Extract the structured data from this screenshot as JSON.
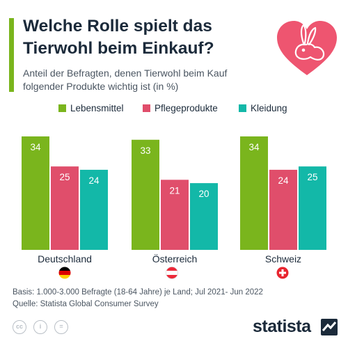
{
  "header": {
    "title": "Welche Rolle spielt das Tierwohl beim Einkauf?",
    "subtitle": "Anteil der Befragten, denen Tierwohl beim Kauf folgender Produkte wichtig ist (in %)",
    "icon": "rabbit-heart-icon"
  },
  "colors": {
    "lebensmittel": "#7ab51d",
    "pflegeprodukte": "#e04e6b",
    "kleidung": "#13b8a8",
    "heart": "#ee5570",
    "text": "#1b2a3a"
  },
  "chart_data": {
    "type": "bar",
    "categories": [
      "Deutschland",
      "Österreich",
      "Schweiz"
    ],
    "series": [
      {
        "name": "Lebensmittel",
        "values": [
          34,
          33,
          34
        ]
      },
      {
        "name": "Pflegeprodukte",
        "values": [
          25,
          21,
          24
        ]
      },
      {
        "name": "Kleidung",
        "values": [
          24,
          20,
          25
        ]
      }
    ],
    "ylim": [
      0,
      34
    ],
    "legend": "top",
    "grid": false,
    "data_labels": true
  },
  "flags": [
    "germany-flag-icon",
    "austria-flag-icon",
    "switzerland-flag-icon"
  ],
  "footer": {
    "basis": "Basis: 1.000-3.000 Befragte (18-64 Jahre) je Land; Jul 2021- Jun 2022",
    "source": "Quelle: Statista Global Consumer Survey",
    "license_icons": [
      "cc-icon",
      "by-icon",
      "nd-icon"
    ],
    "brand": "statista"
  }
}
